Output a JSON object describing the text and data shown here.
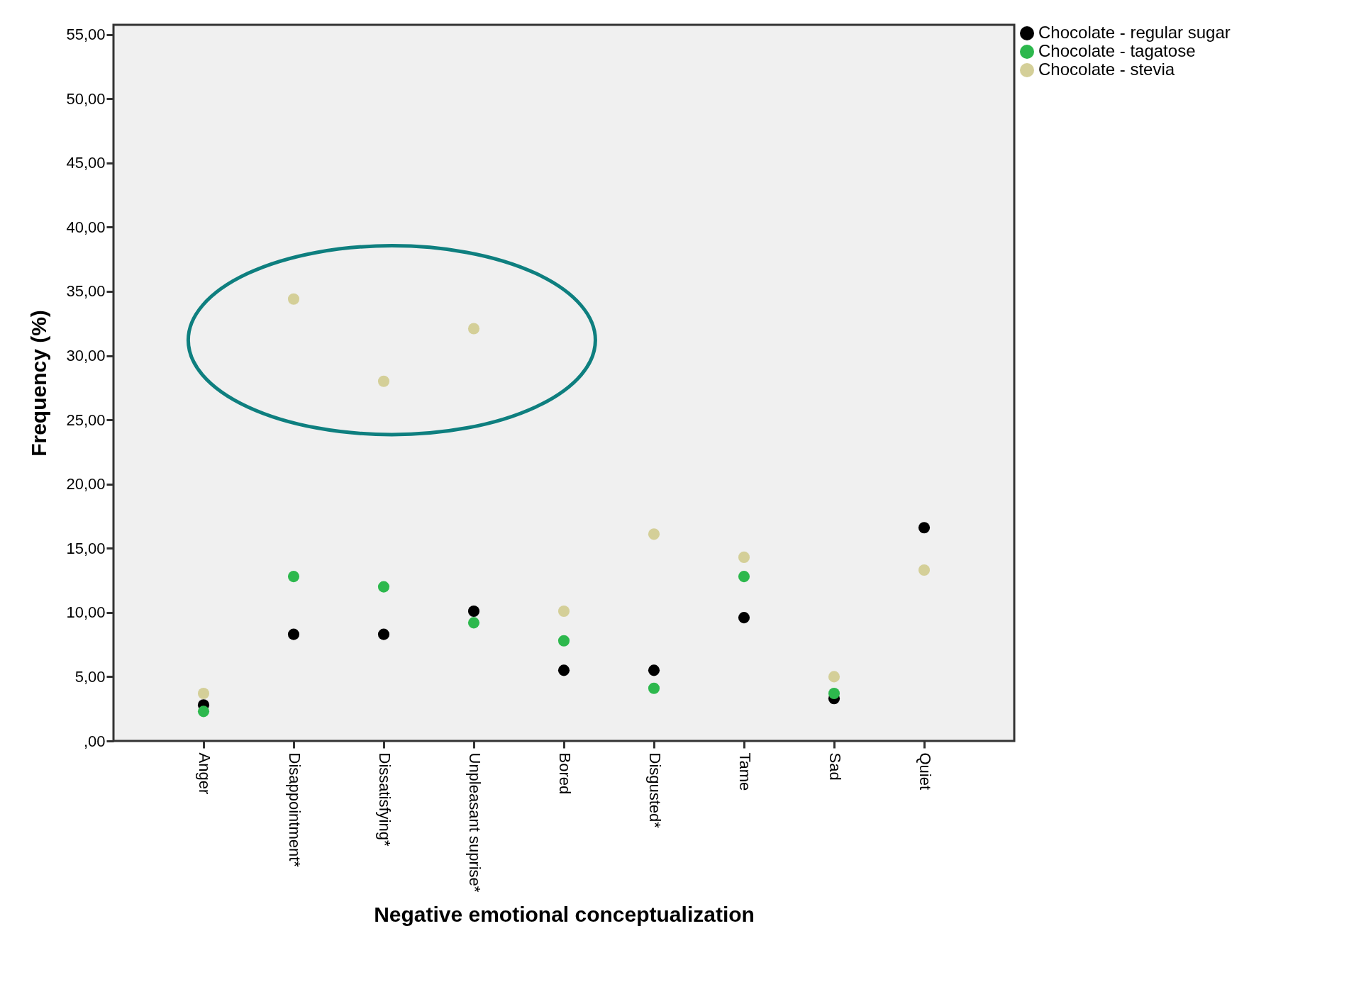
{
  "chart_data": {
    "type": "scatter",
    "xlabel": "Negative emotional conceptualization",
    "ylabel": "Frequency (%)",
    "categories": [
      "Anger",
      "Disappointment*",
      "Dissatisfying*",
      "Unpleasant suprise*",
      "Bored",
      "Disgusted*",
      "Tame",
      "Sad",
      "Quiet"
    ],
    "series": [
      {
        "name": "Chocolate - regular sugar",
        "color": "#000000",
        "values": [
          2.8,
          8.3,
          8.3,
          10.1,
          5.5,
          5.5,
          9.6,
          3.3,
          16.6
        ]
      },
      {
        "name": "Chocolate - tagatose",
        "color": "#2db84d",
        "values": [
          2.3,
          12.8,
          12.0,
          9.2,
          7.8,
          4.1,
          12.8,
          3.7,
          null
        ]
      },
      {
        "name": "Chocolate - stevia",
        "color": "#d4cf98",
        "values": [
          3.7,
          34.4,
          28.0,
          32.1,
          10.1,
          16.1,
          14.3,
          5.0,
          13.3
        ]
      }
    ],
    "ylim": [
      0,
      55.75
    ],
    "yticks": [
      {
        "value": 0,
        "label": ",00"
      },
      {
        "value": 5,
        "label": "5,00"
      },
      {
        "value": 10,
        "label": "10,00"
      },
      {
        "value": 15,
        "label": "15,00"
      },
      {
        "value": 20,
        "label": "20,00"
      },
      {
        "value": 25,
        "label": "25,00"
      },
      {
        "value": 30,
        "label": "30,00"
      },
      {
        "value": 35,
        "label": "35,00"
      },
      {
        "value": 40,
        "label": "40,00"
      },
      {
        "value": 45,
        "label": "45,00"
      },
      {
        "value": 50,
        "label": "50,00"
      },
      {
        "value": 55,
        "label": "55,00"
      }
    ],
    "grid": false,
    "legend": "top right",
    "marker": "circle"
  }
}
